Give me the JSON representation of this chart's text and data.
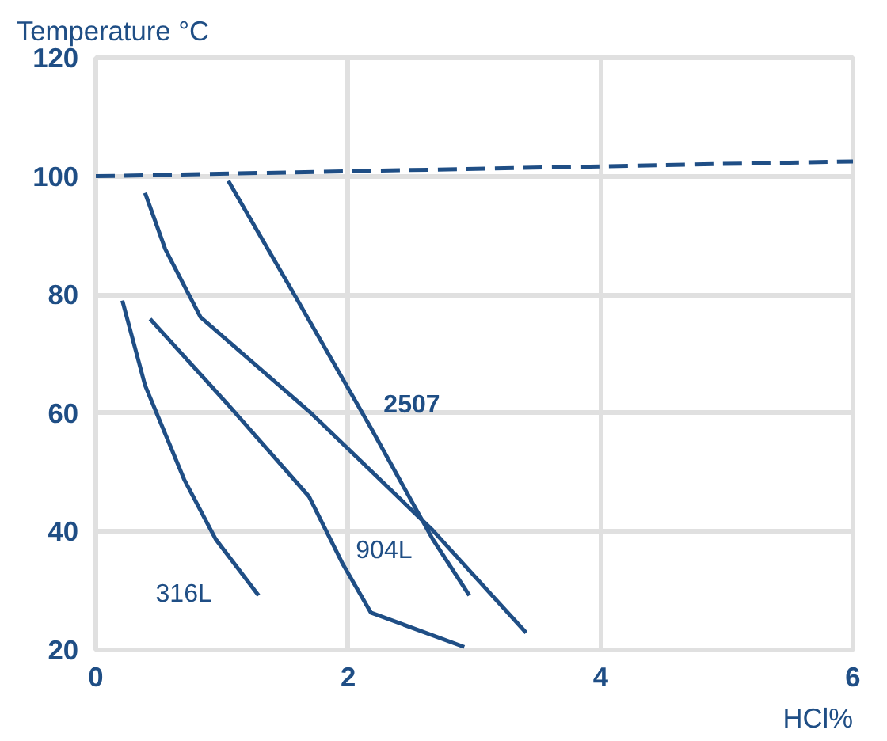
{
  "chart_data": {
    "type": "line",
    "xlabel": "HCl%",
    "ylabel": "Temperature °C",
    "xlim": [
      0,
      6
    ],
    "ylim": [
      20,
      120
    ],
    "xticks": [
      0,
      2,
      4,
      6
    ],
    "yticks": [
      20,
      40,
      60,
      80,
      100,
      120
    ],
    "grid": true,
    "marker": "none",
    "line_style": "solid",
    "series": [
      {
        "name": null,
        "color": "#1f4e85",
        "x": [
          0,
          6
        ],
        "values": [
          100,
          102.5
        ],
        "line_style": "dashed"
      },
      {
        "name": "316L",
        "color": "#1f4e85",
        "x": [
          0.21,
          0.39,
          0.7,
          0.95,
          1.29
        ],
        "values": [
          79,
          64.7,
          48.8,
          38.7,
          29.2
        ]
      },
      {
        "name": "904L",
        "color": "#1f4e85",
        "x": [
          0.43,
          1.07,
          1.69,
          1.96,
          2.18,
          2.92
        ],
        "values": [
          75.9,
          60.9,
          45.9,
          34.4,
          26.3,
          20.5
        ]
      },
      {
        "name": null,
        "color": "#1f4e85",
        "x": [
          0.39,
          0.55,
          0.83,
          1.69,
          2.67,
          3.41
        ],
        "values": [
          97.2,
          87.7,
          76.2,
          60.3,
          40.2,
          22.9
        ]
      },
      {
        "name": "2507",
        "color": "#1f4e85",
        "x": [
          1.05,
          1.56,
          2.18,
          2.67,
          2.96
        ],
        "values": [
          99.2,
          80.5,
          57.5,
          38.7,
          29.2
        ]
      }
    ]
  }
}
